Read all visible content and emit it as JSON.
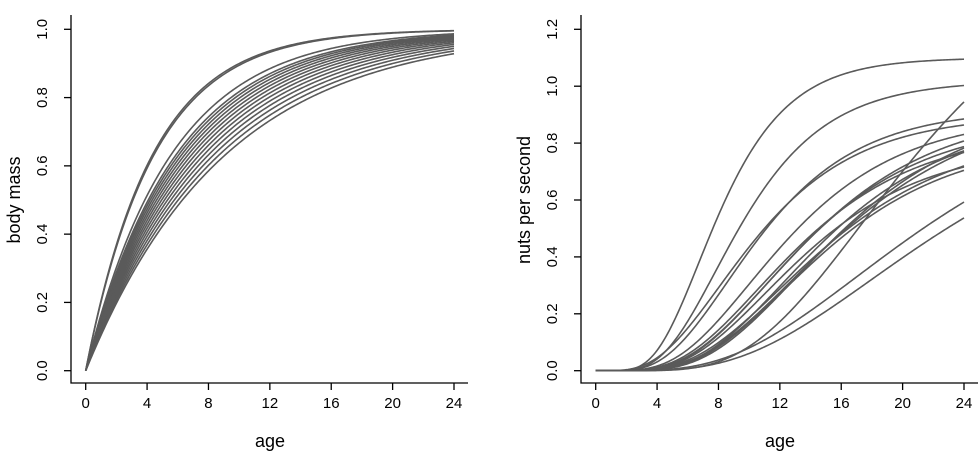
{
  "chart_data": [
    {
      "type": "line",
      "title": "",
      "xlabel": "age",
      "ylabel": "body mass",
      "xlim": [
        0,
        24
      ],
      "ylim": [
        0,
        1.0
      ],
      "xticks": [
        "0",
        "4",
        "8",
        "12",
        "16",
        "20",
        "24"
      ],
      "yticks": [
        "0.0",
        "0.2",
        "0.4",
        "0.6",
        "0.8",
        "1.0"
      ],
      "grid": false,
      "line_color": "#5a5a5a",
      "model": "y = 1 - exp(-k * age)",
      "series": [
        {
          "k": 0.23
        },
        {
          "k": 0.225
        },
        {
          "k": 0.18
        },
        {
          "k": 0.17
        },
        {
          "k": 0.165
        },
        {
          "k": 0.16
        },
        {
          "k": 0.155
        },
        {
          "k": 0.15
        },
        {
          "k": 0.145
        },
        {
          "k": 0.14
        },
        {
          "k": 0.135
        },
        {
          "k": 0.13
        },
        {
          "k": 0.125
        },
        {
          "k": 0.12
        },
        {
          "k": 0.115
        },
        {
          "k": 0.11
        }
      ]
    },
    {
      "type": "line",
      "title": "",
      "xlabel": "age",
      "ylabel": "nuts per second",
      "xlim": [
        0,
        24
      ],
      "ylim": [
        0,
        1.2
      ],
      "xticks": [
        "0",
        "4",
        "8",
        "12",
        "16",
        "20",
        "24"
      ],
      "yticks": [
        "0.0",
        "0.2",
        "0.4",
        "0.6",
        "0.8",
        "1.0",
        "1.2"
      ],
      "grid": false,
      "line_color": "#5a5a5a",
      "model": "y = a * (1 - exp(-k * age))^b",
      "series": [
        {
          "a": 1.1,
          "k": 0.31,
          "b": 8
        },
        {
          "a": 1.02,
          "k": 0.25,
          "b": 7
        },
        {
          "a": 1.5,
          "k": 0.12,
          "b": 8
        },
        {
          "a": 0.9,
          "k": 0.2,
          "b": 5
        },
        {
          "a": 0.92,
          "k": 0.21,
          "b": 6
        },
        {
          "a": 0.9,
          "k": 0.18,
          "b": 6
        },
        {
          "a": 0.92,
          "k": 0.16,
          "b": 6
        },
        {
          "a": 0.95,
          "k": 0.15,
          "b": 7
        },
        {
          "a": 0.9,
          "k": 0.16,
          "b": 7
        },
        {
          "a": 0.88,
          "k": 0.17,
          "b": 6.5
        },
        {
          "a": 0.85,
          "k": 0.17,
          "b": 6
        },
        {
          "a": 0.95,
          "k": 0.14,
          "b": 6
        },
        {
          "a": 0.85,
          "k": 0.15,
          "b": 6
        },
        {
          "a": 0.82,
          "k": 0.16,
          "b": 7
        },
        {
          "a": 0.8,
          "k": 0.17,
          "b": 6.5
        },
        {
          "a": 1.0,
          "k": 0.1,
          "b": 5.5
        },
        {
          "a": 0.95,
          "k": 0.1,
          "b": 6
        }
      ]
    }
  ]
}
